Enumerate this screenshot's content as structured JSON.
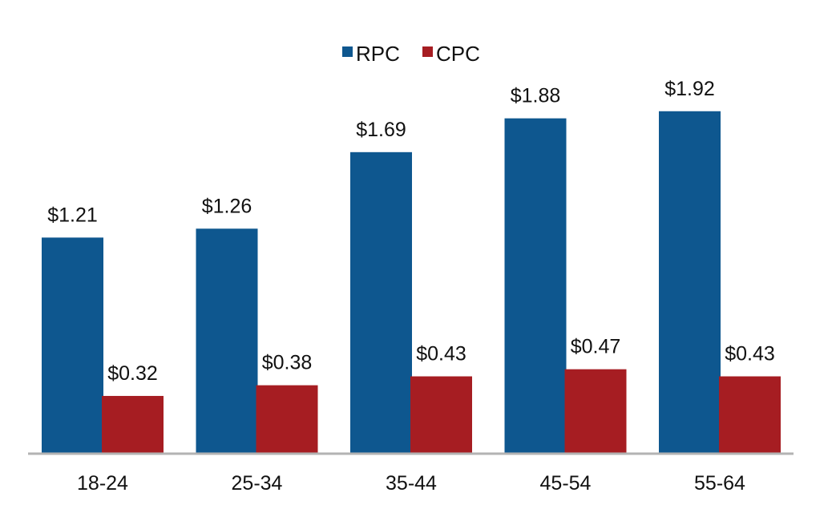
{
  "chart_data": {
    "type": "bar",
    "title": "",
    "xlabel": "",
    "ylabel": "",
    "categories": [
      "18-24",
      "25-34",
      "35-44",
      "45-54",
      "55-64"
    ],
    "series": [
      {
        "name": "RPC",
        "color": "#0e578f",
        "values": [
          1.21,
          1.26,
          1.69,
          1.88,
          1.92
        ],
        "labels": [
          "$1.21",
          "$1.26",
          "$1.69",
          "$1.88",
          "$1.92"
        ]
      },
      {
        "name": "CPC",
        "color": "#a61d22",
        "values": [
          0.32,
          0.38,
          0.43,
          0.47,
          0.43
        ],
        "labels": [
          "$0.32",
          "$0.38",
          "$0.43",
          "$0.47",
          "$0.43"
        ]
      }
    ],
    "ylim": [
      0,
      2.4
    ],
    "grid": false,
    "legend_position": "top-center",
    "axis_color": "#b3b3b3"
  }
}
